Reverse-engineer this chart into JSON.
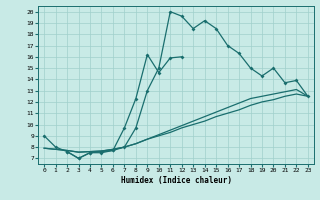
{
  "xlabel": "Humidex (Indice chaleur)",
  "background_color": "#c8eae6",
  "grid_color": "#a0d0cc",
  "line_color": "#1a6e6e",
  "xlim": [
    -0.5,
    23.5
  ],
  "ylim": [
    6.5,
    20.5
  ],
  "xticks": [
    0,
    1,
    2,
    3,
    4,
    5,
    6,
    7,
    8,
    9,
    10,
    11,
    12,
    13,
    14,
    15,
    16,
    17,
    18,
    19,
    20,
    21,
    22,
    23
  ],
  "yticks": [
    7,
    8,
    9,
    10,
    11,
    12,
    13,
    14,
    15,
    16,
    17,
    18,
    19,
    20
  ],
  "line1_x": [
    0,
    1,
    2,
    3,
    4,
    5,
    6,
    7,
    8,
    9,
    10,
    11,
    12,
    13,
    14,
    15,
    16,
    17,
    18,
    19,
    20,
    21,
    22,
    23
  ],
  "line1_y": [
    9.0,
    8.0,
    7.6,
    7.0,
    7.5,
    7.5,
    7.7,
    8.0,
    9.7,
    13.0,
    15.0,
    20.0,
    19.6,
    18.5,
    19.2,
    18.5,
    17.0,
    16.3,
    15.0,
    14.3,
    15.0,
    13.7,
    13.9,
    12.5
  ],
  "line2_x": [
    2,
    3,
    4,
    5,
    6,
    7,
    8,
    9,
    10,
    11,
    12
  ],
  "line2_y": [
    7.6,
    7.0,
    7.5,
    7.6,
    7.7,
    9.7,
    12.3,
    16.2,
    14.6,
    15.9,
    16.0
  ],
  "line3_x": [
    0,
    1,
    2,
    3,
    4,
    5,
    6,
    7,
    8,
    9,
    10,
    11,
    12,
    13,
    14,
    15,
    16,
    17,
    18,
    19,
    20,
    21,
    22,
    23
  ],
  "line3_y": [
    7.9,
    7.8,
    7.7,
    7.55,
    7.6,
    7.65,
    7.8,
    8.0,
    8.3,
    8.7,
    9.1,
    9.5,
    9.9,
    10.3,
    10.7,
    11.1,
    11.5,
    11.9,
    12.3,
    12.5,
    12.7,
    12.9,
    13.1,
    12.5
  ],
  "line4_x": [
    0,
    1,
    2,
    3,
    4,
    5,
    6,
    7,
    8,
    9,
    10,
    11,
    12,
    13,
    14,
    15,
    16,
    17,
    18,
    19,
    20,
    21,
    22,
    23
  ],
  "line4_y": [
    7.9,
    7.8,
    7.7,
    7.55,
    7.6,
    7.65,
    7.8,
    8.0,
    8.3,
    8.7,
    9.0,
    9.3,
    9.7,
    10.0,
    10.3,
    10.7,
    11.0,
    11.3,
    11.7,
    12.0,
    12.2,
    12.5,
    12.7,
    12.5
  ]
}
